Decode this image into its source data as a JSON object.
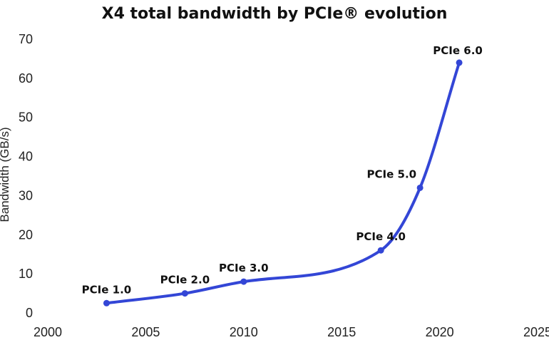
{
  "chart_data": {
    "type": "line",
    "title": "X4 total bandwidth by PCIe® evolution",
    "xlabel": "",
    "ylabel": "Bandwidth (GB/s)",
    "xlim": [
      2000,
      2025
    ],
    "ylim": [
      0,
      70
    ],
    "xticks": [
      2000,
      2005,
      2010,
      2015,
      2020,
      2025
    ],
    "yticks": [
      0,
      10,
      20,
      30,
      40,
      50,
      60,
      70
    ],
    "grid": false,
    "legend": "none",
    "color": "#3346d6",
    "points": [
      {
        "label": "PCIe 1.0",
        "x": 2003,
        "y": 2.5
      },
      {
        "label": "PCIe 2.0",
        "x": 2007,
        "y": 5
      },
      {
        "label": "PCIe 3.0",
        "x": 2010,
        "y": 8
      },
      {
        "label": "PCIe 4.0",
        "x": 2017,
        "y": 16
      },
      {
        "label": "PCIe 5.0",
        "x": 2019,
        "y": 32
      },
      {
        "label": "PCIe 6.0",
        "x": 2021,
        "y": 64
      }
    ]
  }
}
